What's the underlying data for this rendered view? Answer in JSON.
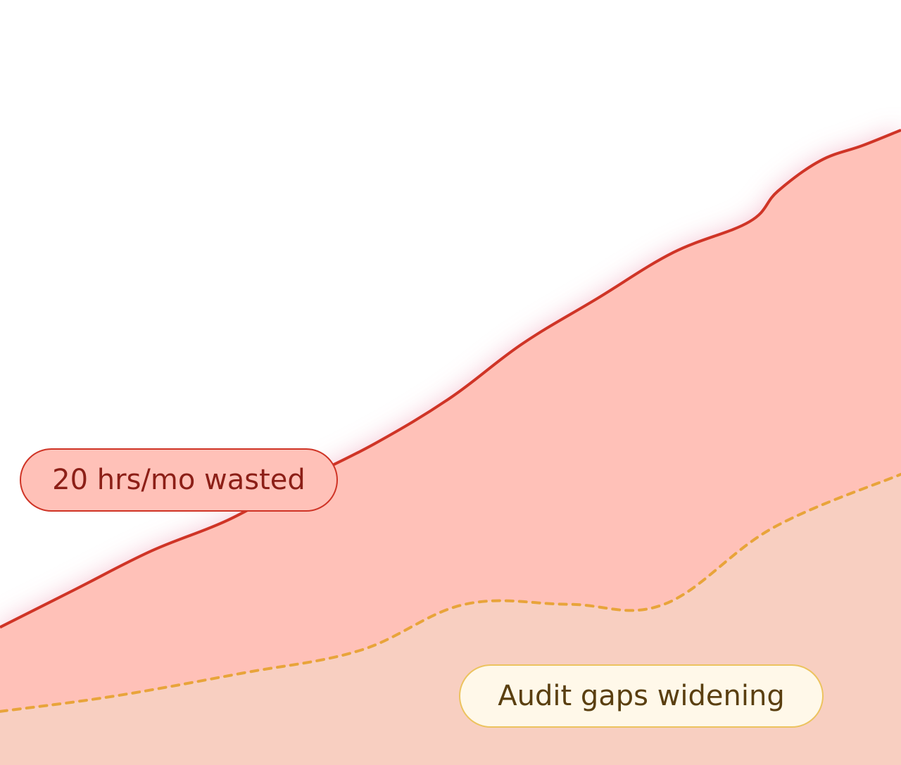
{
  "chart_data": {
    "type": "area",
    "x": [
      0,
      1,
      2,
      3,
      4,
      5,
      6,
      7,
      8,
      9,
      10,
      11,
      12,
      13,
      14,
      15,
      16,
      17,
      18,
      19
    ],
    "xlim": [
      0,
      19
    ],
    "ylim": [
      0,
      100
    ],
    "series": [
      {
        "values": [
          18,
          23,
          28,
          32,
          37,
          42,
          48,
          55,
          61,
          67,
          71,
          75,
          79,
          81,
          83
        ],
        "x": [
          0,
          1.6,
          3.2,
          4.8,
          6.3,
          7.9,
          9.5,
          11,
          12.6,
          14.2,
          15.8,
          16.4,
          17.3,
          18.2,
          19
        ],
        "style": "solid",
        "color": "#cf3426",
        "fill": "#ffc1b8"
      },
      {
        "values": [
          7,
          9,
          12,
          15,
          21,
          21,
          21,
          31,
          38
        ],
        "x": [
          0,
          2.4,
          5.1,
          7.6,
          9.8,
          12,
          14,
          16.3,
          19
        ],
        "style": "dotted",
        "color": "#e8a43a",
        "fill": "#f8cfc1"
      }
    ],
    "annotations": [
      {
        "text": "20 hrs/mo wasted",
        "series": 0
      },
      {
        "text": "Audit gaps widening",
        "series": 1
      }
    ],
    "grid": false,
    "legend": "none",
    "colors": {
      "background": "#ffffff",
      "waste_line": "#cf3426",
      "waste_fill": "#ffc1b8",
      "audit_line": "#e8a43a",
      "audit_fill": "#f8cfc1"
    }
  }
}
